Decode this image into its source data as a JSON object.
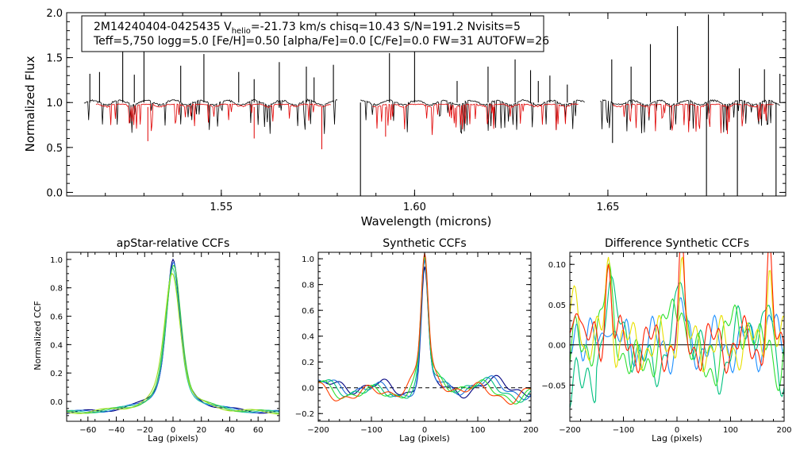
{
  "chart_data": [
    {
      "type": "line",
      "name": "spectrum",
      "title": "",
      "xlabel": "Wavelength (microns)",
      "ylabel": "Normalized Flux",
      "xlim": [
        1.51,
        1.696
      ],
      "ylim": [
        -0.04,
        2.0
      ],
      "xticks": [
        1.55,
        1.6,
        1.65
      ],
      "yticks": [
        0.0,
        0.5,
        1.0,
        1.5,
        2.0
      ],
      "info_line1_prefix": "2M14240404-0425435  V",
      "info_line1_sub": "helio",
      "info_line1_suffix": "=-21.73 km/s  chisq=10.43  S/N=191.2  Nvisits=5",
      "info_line2": "Teff=5,750 logg=5.0 [Fe/H]=0.50 [alpha/Fe]=0.0 [C/Fe]=0.0 FW=31 AUTOFW=26",
      "chips": [
        [
          1.5145,
          1.58
        ],
        [
          1.586,
          1.644
        ],
        [
          1.648,
          1.6945
        ]
      ],
      "emission_spikes": [
        [
          1.516,
          1.32
        ],
        [
          1.5185,
          1.34
        ],
        [
          1.5245,
          1.67
        ],
        [
          1.5275,
          1.31
        ],
        [
          1.53,
          1.57
        ],
        [
          1.5395,
          1.41
        ],
        [
          1.5455,
          1.54
        ],
        [
          1.5545,
          1.34
        ],
        [
          1.5585,
          1.26
        ],
        [
          1.565,
          1.45
        ],
        [
          1.572,
          1.4
        ],
        [
          1.574,
          1.28
        ],
        [
          1.579,
          1.42
        ],
        [
          1.5935,
          1.55
        ],
        [
          1.6,
          1.58
        ],
        [
          1.611,
          1.24
        ],
        [
          1.619,
          1.4
        ],
        [
          1.626,
          1.48
        ],
        [
          1.63,
          1.36
        ],
        [
          1.632,
          1.24
        ],
        [
          1.635,
          1.3
        ],
        [
          1.6395,
          1.2
        ],
        [
          1.651,
          1.48
        ],
        [
          1.656,
          1.4
        ],
        [
          1.661,
          1.65
        ],
        [
          1.668,
          1.85
        ],
        [
          1.676,
          1.98
        ],
        [
          1.684,
          1.38
        ],
        [
          1.6905,
          1.37
        ],
        [
          1.6945,
          1.32
        ]
      ],
      "absorption_spikes": [
        [
          1.586,
          -0.04
        ],
        [
          1.6755,
          -0.04
        ],
        [
          1.6835,
          -0.04
        ],
        [
          1.6935,
          -0.04
        ],
        [
          1.6512,
          0.55
        ]
      ],
      "series": [
        {
          "name": "observed",
          "color": "#000000"
        },
        {
          "name": "model",
          "color": "#e00000"
        }
      ]
    },
    {
      "type": "line",
      "name": "apstar-ccf",
      "title": "apStar-relative CCFs",
      "xlabel": "Lag (pixels)",
      "ylabel": "Normalized CCF",
      "xlim": [
        -75,
        75
      ],
      "ylim": [
        -0.14,
        1.05
      ],
      "xticks": [
        -60,
        -40,
        -20,
        0,
        20,
        40,
        60
      ],
      "yticks": [
        0.0,
        0.2,
        0.4,
        0.6,
        0.8,
        1.0
      ],
      "ytick_labels": [
        "0.0",
        "0.2",
        "0.4",
        "0.6",
        "0.8",
        "1.0"
      ],
      "series": [
        {
          "name": "visit-1",
          "color": "#000080",
          "peak": 1.0,
          "width": 4.2,
          "offset": 0.0
        },
        {
          "name": "visit-2",
          "color": "#1e6fd9",
          "peak": 0.97,
          "width": 4.5,
          "offset": 0.3
        },
        {
          "name": "visit-3",
          "color": "#28c8a0",
          "peak": 0.93,
          "width": 4.8,
          "offset": -0.3
        },
        {
          "name": "visit-4",
          "color": "#40d040",
          "peak": 0.96,
          "width": 5.0,
          "offset": 0.5
        },
        {
          "name": "visit-5",
          "color": "#a0e020",
          "peak": 0.91,
          "width": 5.4,
          "offset": -0.5
        }
      ]
    },
    {
      "type": "line",
      "name": "synthetic-ccf",
      "title": "Synthetic CCFs",
      "xlabel": "Lag (pixels)",
      "ylabel": "",
      "xlim": [
        -200,
        200
      ],
      "ylim": [
        -0.26,
        1.05
      ],
      "xticks": [
        -200,
        -100,
        0,
        100,
        200
      ],
      "xtick_labels": [
        "-200",
        "-100",
        "0",
        "100",
        "200"
      ],
      "yticks": [
        -0.2,
        0.0,
        0.2,
        0.4,
        0.6,
        0.8,
        1.0
      ],
      "ytick_labels": [
        "-0.2",
        "0.0",
        "0.2",
        "0.4",
        "0.6",
        "0.8",
        "1.0"
      ],
      "zero_line": "dashed",
      "series": [
        {
          "name": "visit-1",
          "color": "#000080"
        },
        {
          "name": "visit-2",
          "color": "#1e6fd9"
        },
        {
          "name": "visit-3",
          "color": "#00c080"
        },
        {
          "name": "visit-4",
          "color": "#30e030"
        },
        {
          "name": "visit-5",
          "color": "#ff4000"
        }
      ]
    },
    {
      "type": "line",
      "name": "difference-ccf",
      "title": "Difference Synthetic CCFs",
      "xlabel": "Lag (pixels)",
      "ylabel": "",
      "xlim": [
        -200,
        200
      ],
      "ylim": [
        -0.095,
        0.115
      ],
      "xticks": [
        -200,
        -100,
        0,
        100,
        200
      ],
      "xtick_labels": [
        "-200",
        "-100",
        "0",
        "100",
        "200"
      ],
      "yticks": [
        -0.05,
        0.0,
        0.05,
        0.1
      ],
      "ytick_labels": [
        "-0.05",
        "0.00",
        "0.05",
        "0.10"
      ],
      "zero_line": "solid",
      "series": [
        {
          "name": "visit-1",
          "color": "#1e90ff"
        },
        {
          "name": "visit-2",
          "color": "#00c080"
        },
        {
          "name": "visit-3",
          "color": "#30e030"
        },
        {
          "name": "visit-4",
          "color": "#e8e000"
        },
        {
          "name": "visit-5",
          "color": "#ff2000"
        }
      ]
    }
  ]
}
